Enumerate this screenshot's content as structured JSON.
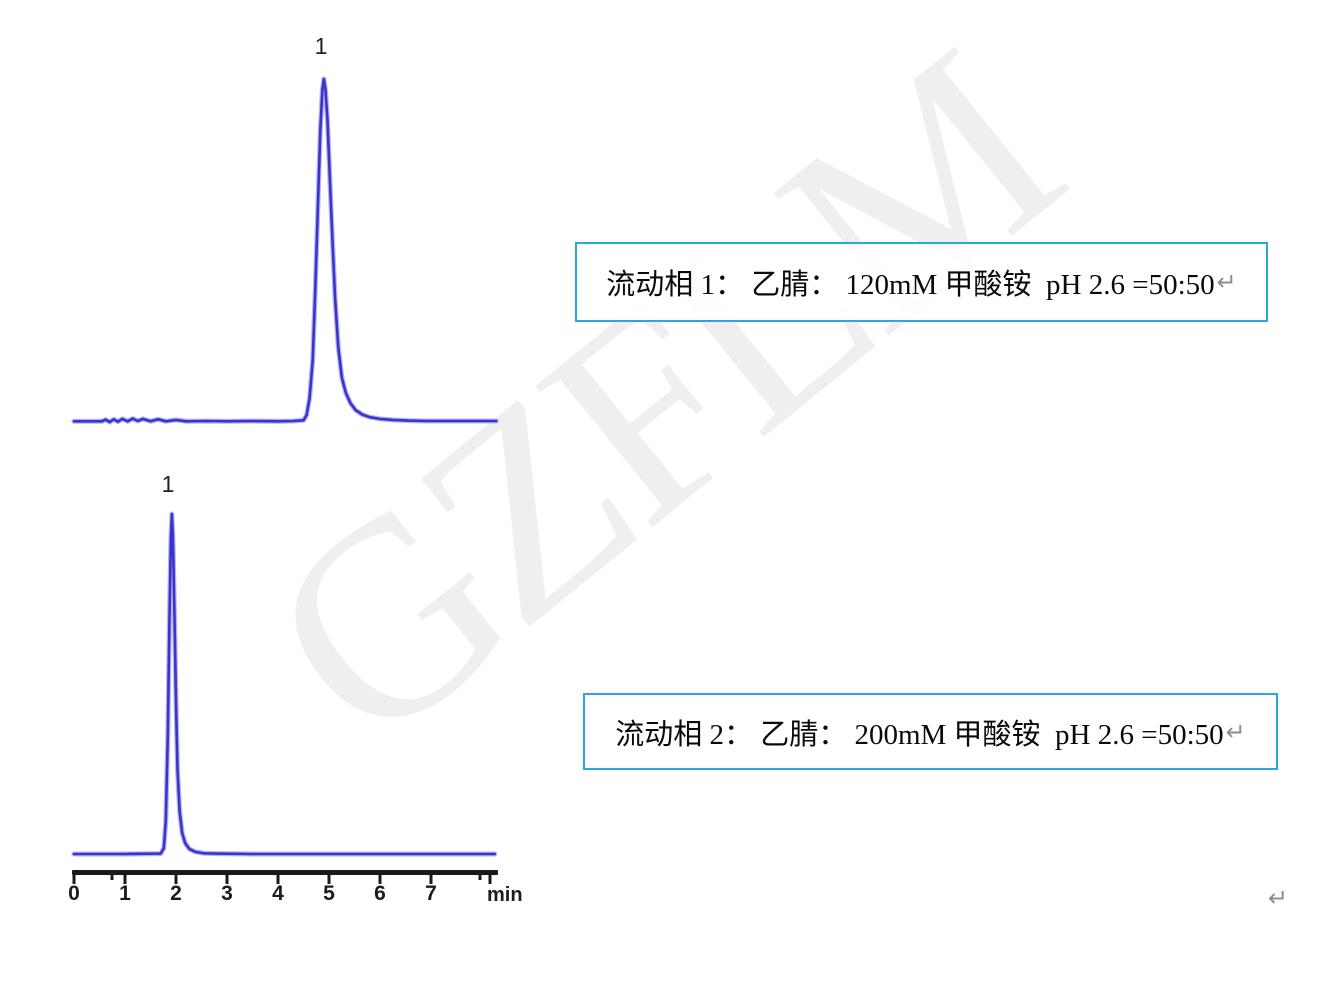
{
  "watermark": {
    "text": "GZFLM"
  },
  "annotations": {
    "box1": {
      "text": "流动相 1： 乙腈： 120mM 甲酸铵  pH 2.6 =50:50",
      "return_mark": "↵"
    },
    "box2": {
      "text": "流动相 2： 乙腈： 200mM 甲酸铵  pH 2.6 =50:50",
      "return_mark": "↵"
    },
    "page_return_mark": "↵"
  },
  "chart_data": [
    {
      "type": "line",
      "peak_label": "1",
      "peak_retention_min": 4.9,
      "x_range": [
        0,
        8.3
      ],
      "line_color": "#3a34cd",
      "points": [
        [
          0.0,
          0.002
        ],
        [
          0.55,
          0.002
        ],
        [
          0.62,
          0.007
        ],
        [
          0.7,
          0.0
        ],
        [
          0.78,
          0.008
        ],
        [
          0.86,
          0.001
        ],
        [
          0.95,
          0.009
        ],
        [
          1.05,
          0.002
        ],
        [
          1.15,
          0.01
        ],
        [
          1.25,
          0.003
        ],
        [
          1.35,
          0.009
        ],
        [
          1.5,
          0.002
        ],
        [
          1.65,
          0.008
        ],
        [
          1.8,
          0.002
        ],
        [
          2.0,
          0.006
        ],
        [
          2.2,
          0.002
        ],
        [
          2.6,
          0.003
        ],
        [
          3.0,
          0.002
        ],
        [
          3.5,
          0.003
        ],
        [
          4.0,
          0.002
        ],
        [
          4.3,
          0.003
        ],
        [
          4.5,
          0.005
        ],
        [
          4.56,
          0.02
        ],
        [
          4.62,
          0.07
        ],
        [
          4.68,
          0.18
        ],
        [
          4.73,
          0.38
        ],
        [
          4.78,
          0.62
        ],
        [
          4.83,
          0.85
        ],
        [
          4.87,
          0.97
        ],
        [
          4.9,
          1.0
        ],
        [
          4.93,
          0.97
        ],
        [
          4.97,
          0.88
        ],
        [
          5.02,
          0.7
        ],
        [
          5.07,
          0.52
        ],
        [
          5.12,
          0.36
        ],
        [
          5.18,
          0.22
        ],
        [
          5.25,
          0.13
        ],
        [
          5.33,
          0.085
        ],
        [
          5.42,
          0.055
        ],
        [
          5.52,
          0.035
        ],
        [
          5.65,
          0.022
        ],
        [
          5.8,
          0.014
        ],
        [
          6.0,
          0.009
        ],
        [
          6.25,
          0.006
        ],
        [
          6.55,
          0.004
        ],
        [
          6.9,
          0.003
        ],
        [
          7.3,
          0.003
        ],
        [
          8.28,
          0.003
        ]
      ]
    },
    {
      "type": "line",
      "peak_label": "1",
      "peak_retention_min": 1.9,
      "x_range": [
        0,
        8.3
      ],
      "x_ticks": [
        0,
        1,
        2,
        3,
        4,
        5,
        6,
        7
      ],
      "x_tick_unit": "min",
      "line_color": "#3a34cd",
      "points": [
        [
          0.0,
          0.003
        ],
        [
          1.0,
          0.003
        ],
        [
          1.7,
          0.004
        ],
        [
          1.76,
          0.02
        ],
        [
          1.8,
          0.1
        ],
        [
          1.84,
          0.35
        ],
        [
          1.87,
          0.68
        ],
        [
          1.9,
          0.93
        ],
        [
          1.92,
          1.0
        ],
        [
          1.94,
          0.93
        ],
        [
          1.97,
          0.7
        ],
        [
          2.0,
          0.45
        ],
        [
          2.03,
          0.25
        ],
        [
          2.07,
          0.13
        ],
        [
          2.12,
          0.065
        ],
        [
          2.18,
          0.035
        ],
        [
          2.26,
          0.018
        ],
        [
          2.38,
          0.009
        ],
        [
          2.55,
          0.005
        ],
        [
          2.8,
          0.004
        ],
        [
          3.5,
          0.003
        ],
        [
          5.0,
          0.003
        ],
        [
          6.5,
          0.003
        ],
        [
          8.25,
          0.003
        ]
      ]
    }
  ]
}
